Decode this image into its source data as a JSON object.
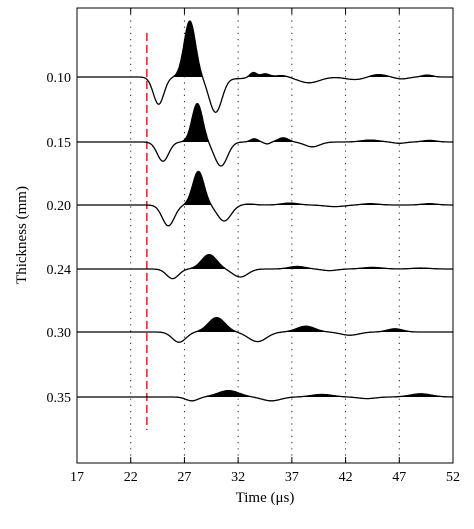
{
  "chart_data": {
    "type": "line",
    "title": "",
    "xlabel": "Time (μs)",
    "ylabel": "Thickness (mm)",
    "xlim": [
      17,
      52
    ],
    "xticks": [
      "17",
      "22",
      "27",
      "32",
      "37",
      "42",
      "47",
      "52"
    ],
    "grid": "vertical dotted lines at x ticks",
    "reference_line": {
      "x": 23.5,
      "style": "dashed",
      "color": "#e0303a"
    },
    "positive_fill": "#000000",
    "series": [
      {
        "label": "0.10",
        "pulses": [
          {
            "t": 24.6,
            "a": -0.85,
            "w": 0.7
          },
          {
            "t": 27.5,
            "a": 1.75,
            "w": 0.75
          },
          {
            "t": 29.9,
            "a": -1.1,
            "w": 0.85
          },
          {
            "t": 32.0,
            "a": -0.05,
            "w": 1.2
          },
          {
            "t": 33.4,
            "a": 0.15,
            "w": 0.45
          },
          {
            "t": 34.5,
            "a": 0.1,
            "w": 0.6
          },
          {
            "t": 36.1,
            "a": 0.05,
            "w": 0.8
          },
          {
            "t": 38.6,
            "a": -0.18,
            "w": 1.4
          },
          {
            "t": 42.9,
            "a": -0.08,
            "w": 1.3
          },
          {
            "t": 45.0,
            "a": 0.08,
            "w": 1.1
          },
          {
            "t": 47.2,
            "a": -0.06,
            "w": 0.9
          },
          {
            "t": 49.6,
            "a": 0.06,
            "w": 0.7
          }
        ]
      },
      {
        "label": "0.15",
        "pulses": [
          {
            "t": 25.0,
            "a": -0.6,
            "w": 0.75
          },
          {
            "t": 28.2,
            "a": 1.2,
            "w": 0.7
          },
          {
            "t": 30.4,
            "a": -0.75,
            "w": 0.85
          },
          {
            "t": 33.5,
            "a": 0.1,
            "w": 0.5
          },
          {
            "t": 34.7,
            "a": -0.06,
            "w": 0.4
          },
          {
            "t": 36.2,
            "a": 0.13,
            "w": 0.7
          },
          {
            "t": 38.9,
            "a": -0.15,
            "w": 1.0
          },
          {
            "t": 44.3,
            "a": 0.06,
            "w": 1.2
          },
          {
            "t": 47.0,
            "a": -0.04,
            "w": 0.8
          },
          {
            "t": 49.8,
            "a": 0.05,
            "w": 0.9
          }
        ]
      },
      {
        "label": "0.20",
        "pulses": [
          {
            "t": 25.5,
            "a": -0.65,
            "w": 0.8
          },
          {
            "t": 28.3,
            "a": 1.05,
            "w": 0.75
          },
          {
            "t": 30.7,
            "a": -0.5,
            "w": 0.9
          },
          {
            "t": 33.0,
            "a": 0.03,
            "w": 0.8
          },
          {
            "t": 36.8,
            "a": 0.06,
            "w": 1.1
          },
          {
            "t": 41.0,
            "a": -0.05,
            "w": 1.3
          },
          {
            "t": 44.3,
            "a": 0.04,
            "w": 1.1
          },
          {
            "t": 49.8,
            "a": 0.04,
            "w": 1.0
          }
        ]
      },
      {
        "label": "0.24",
        "pulses": [
          {
            "t": 25.9,
            "a": -0.3,
            "w": 0.8
          },
          {
            "t": 29.3,
            "a": 0.45,
            "w": 1.0
          },
          {
            "t": 32.2,
            "a": -0.25,
            "w": 1.0
          },
          {
            "t": 37.5,
            "a": 0.08,
            "w": 1.1
          },
          {
            "t": 40.5,
            "a": -0.05,
            "w": 1.0
          },
          {
            "t": 44.5,
            "a": 0.05,
            "w": 1.3
          },
          {
            "t": 49.0,
            "a": 0.03,
            "w": 1.2
          }
        ]
      },
      {
        "label": "0.30",
        "pulses": [
          {
            "t": 26.5,
            "a": -0.32,
            "w": 0.9
          },
          {
            "t": 30.0,
            "a": 0.45,
            "w": 1.1
          },
          {
            "t": 33.8,
            "a": -0.3,
            "w": 1.2
          },
          {
            "t": 38.3,
            "a": 0.18,
            "w": 1.2
          },
          {
            "t": 42.4,
            "a": -0.1,
            "w": 1.2
          },
          {
            "t": 46.6,
            "a": 0.1,
            "w": 1.0
          }
        ]
      },
      {
        "label": "0.35",
        "pulses": [
          {
            "t": 27.7,
            "a": -0.12,
            "w": 0.8
          },
          {
            "t": 31.1,
            "a": 0.2,
            "w": 1.4
          },
          {
            "t": 35.1,
            "a": -0.12,
            "w": 1.2
          },
          {
            "t": 39.8,
            "a": 0.08,
            "w": 1.4
          },
          {
            "t": 44.0,
            "a": -0.05,
            "w": 1.1
          },
          {
            "t": 49.0,
            "a": 0.1,
            "w": 1.4
          }
        ]
      }
    ]
  }
}
